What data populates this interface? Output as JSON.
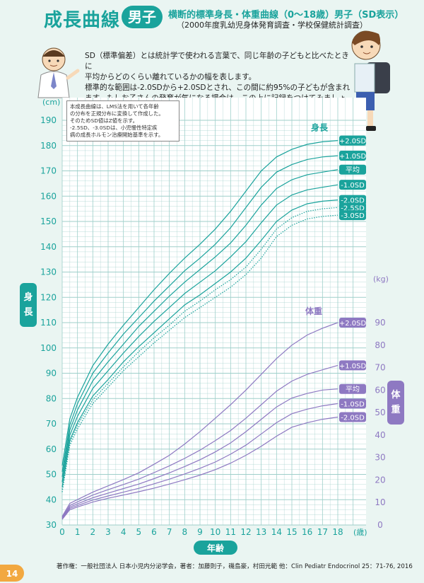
{
  "header": {
    "title": "成長曲線",
    "badge": "男子",
    "subtitle": "横断的標準身長・体重曲線（0〜18歳）男子（SD表示）",
    "note": "（2000年度乳幼児身体発育調査・学校保健統計調査）"
  },
  "intro": [
    "SD（標準偏差）とは統計学で使われる言葉で、同じ年齢の子どもと比べたときに",
    "平均からどのくらい離れているかの幅を表します。",
    "標準的な範囲は-2.0SDから+2.0SDとされ、この間に約95%の子どもが含まれ",
    "ます。もしお子さんの発育が気になる場合は、この上に記録をつけてみましょう。"
  ],
  "notebox": [
    "本成長曲線は、LMS法を用いて各年齢",
    "の分布を正規分布に変換して作成した。",
    "そのためSD値はZ値を示す。",
    "-2.5SD、-3.0SDは、小児慢性特定疾",
    "病の成長ホルモン治療開始基準を示す。"
  ],
  "footer": "著作権：一般社団法人 日本小児内分泌学会，著者：加藤則子，磯島豪，村田光範 他：Clin Pediatr Endocrinol 25：71-76, 2016",
  "page_number": "14",
  "colors": {
    "height": "#1aa39c",
    "weight": "#8e79c2",
    "grid": "#9fcfca",
    "background": "#eaf5f2"
  },
  "chart_data": {
    "type": "line",
    "xlabel": "年齢",
    "x_unit": "(歳)",
    "x": [
      0,
      0.5,
      1,
      2,
      3,
      4,
      5,
      6,
      7,
      8,
      9,
      10,
      11,
      12,
      13,
      14,
      15,
      16,
      17,
      18
    ],
    "xlim": [
      0,
      18
    ],
    "grid": true,
    "height_axis": {
      "label": "身長",
      "unit": "(cm)",
      "ylim": [
        30,
        190
      ],
      "ticks": [
        30,
        40,
        50,
        60,
        70,
        80,
        90,
        100,
        110,
        120,
        130,
        140,
        150,
        160,
        170,
        180,
        190
      ],
      "curve_label": "身長",
      "series": [
        {
          "name": "+2.0SD",
          "style": "solid",
          "values": [
            53.5,
            72,
            80.5,
            93,
            101.5,
            109,
            116,
            123,
            129.5,
            135.5,
            141,
            147,
            154,
            162,
            170,
            175.5,
            178.5,
            180.5,
            181.5,
            182
          ]
        },
        {
          "name": "+1.0SD",
          "style": "solid",
          "values": [
            51,
            69.5,
            78,
            90,
            98,
            105.5,
            112,
            118.5,
            124.5,
            130.5,
            135.5,
            141,
            147.5,
            155.5,
            163.5,
            169.5,
            172.5,
            174.5,
            175.5,
            176
          ]
        },
        {
          "name": "平均",
          "style": "solid",
          "values": [
            49,
            67.5,
            75.5,
            87,
            94.5,
            101.5,
            108.5,
            114.5,
            120.5,
            126,
            131,
            136,
            141.5,
            148.5,
            156.5,
            163,
            166.5,
            168.5,
            169.5,
            170.5
          ]
        },
        {
          "name": "-1.0SD",
          "style": "solid",
          "values": [
            47,
            65.5,
            73,
            84,
            91,
            98,
            104.5,
            110.5,
            116,
            121.5,
            126,
            130.5,
            136,
            142,
            149.5,
            156.5,
            160.5,
            162.5,
            163.5,
            164.5
          ]
        },
        {
          "name": "-2.0SD",
          "style": "solid",
          "values": [
            45,
            63.5,
            70.5,
            81,
            87.5,
            94.5,
            100.5,
            106,
            111.5,
            117,
            121,
            125.5,
            130,
            135.5,
            142.5,
            150,
            154.5,
            157,
            158,
            158.5
          ]
        },
        {
          "name": "-2.5SD",
          "style": "dotted",
          "values": [
            44,
            62.5,
            69.5,
            79.5,
            86,
            92.5,
            98.5,
            104,
            109,
            114.5,
            118.5,
            123,
            127,
            132,
            139,
            147,
            151.5,
            154,
            155,
            155.5
          ]
        },
        {
          "name": "-3.0SD",
          "style": "dotted",
          "values": [
            43,
            61.5,
            68,
            78,
            84.5,
            91,
            96.5,
            102,
            107,
            112,
            116,
            120,
            124,
            129,
            135.5,
            144,
            148.5,
            151,
            152,
            152.5
          ]
        }
      ]
    },
    "weight_axis": {
      "label": "体重",
      "unit": "(kg)",
      "ylim": [
        0,
        90
      ],
      "ticks": [
        0,
        10,
        20,
        30,
        40,
        50,
        60,
        70,
        80,
        90
      ],
      "curve_label": "体重",
      "series": [
        {
          "name": "+2.0SD",
          "style": "solid",
          "values": [
            3.8,
            9.6,
            11.3,
            14.6,
            17.4,
            20.2,
            23.2,
            27,
            31,
            36,
            41.5,
            47.5,
            53.5,
            60,
            67,
            74,
            80,
            84.5,
            87.5,
            90
          ]
        },
        {
          "name": "+1.0SD",
          "style": "solid",
          "values": [
            3.4,
            8.7,
            10.3,
            13.3,
            15.7,
            18,
            20.4,
            23.3,
            26.3,
            29.6,
            33.3,
            37.5,
            42,
            47.5,
            53.5,
            59.5,
            64,
            67,
            69,
            71
          ]
        },
        {
          "name": "平均",
          "style": "solid",
          "values": [
            3.1,
            8,
            9.4,
            12.1,
            14.2,
            16.2,
            18.2,
            20.6,
            23.2,
            26,
            29,
            32.5,
            36.5,
            41.5,
            47,
            52.5,
            56.5,
            58.5,
            60,
            60.5
          ]
        },
        {
          "name": "-1.0SD",
          "style": "solid",
          "values": [
            2.8,
            7.4,
            8.7,
            11.1,
            12.9,
            14.6,
            16.3,
            18.3,
            20.4,
            22.7,
            25.2,
            28,
            31.5,
            35.5,
            40.5,
            45.5,
            49.5,
            51.5,
            53,
            54
          ]
        },
        {
          "name": "-2.0SD",
          "style": "solid",
          "values": [
            2.5,
            6.8,
            8,
            10.2,
            11.9,
            13.3,
            14.8,
            16.4,
            18.2,
            20.1,
            22.2,
            24.6,
            27.5,
            31,
            35,
            39.5,
            43.5,
            45.5,
            47,
            48
          ]
        }
      ]
    }
  }
}
